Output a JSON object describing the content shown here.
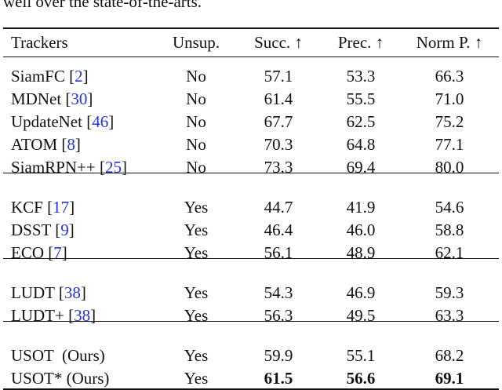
{
  "caption": "well over the state-of-the-arts.",
  "table": {
    "header": [
      "Trackers",
      "Unsup.",
      "Succ. ↑",
      "Prec. ↑",
      "Norm P. ↑"
    ],
    "groups": [
      [
        {
          "tracker": [
            "SiamFC [",
            "2",
            "]"
          ],
          "cells": [
            "No",
            "57.1",
            "53.3",
            "66.3"
          ]
        },
        {
          "tracker": [
            "MDNet [",
            "30",
            "]"
          ],
          "cells": [
            "No",
            "61.4",
            "55.5",
            "71.0"
          ]
        },
        {
          "tracker": [
            "UpdateNet [",
            "46",
            "]"
          ],
          "cells": [
            "No",
            "67.7",
            "62.5",
            "75.2"
          ]
        },
        {
          "tracker": [
            "ATOM [",
            "8",
            "]"
          ],
          "cells": [
            "No",
            "70.3",
            "64.8",
            "77.1"
          ]
        },
        {
          "tracker": [
            "SiamRPN++ [",
            "25",
            "]"
          ],
          "cells": [
            "No",
            "73.3",
            "69.4",
            "80.0"
          ]
        }
      ],
      [
        {
          "tracker": [
            "KCF [",
            "17",
            "]"
          ],
          "cells": [
            "Yes",
            "44.7",
            "41.9",
            "54.6"
          ]
        },
        {
          "tracker": [
            "DSST [",
            "9",
            "]"
          ],
          "cells": [
            "Yes",
            "46.4",
            "46.0",
            "58.8"
          ]
        },
        {
          "tracker": [
            "ECO [",
            "7",
            "]"
          ],
          "cells": [
            "Yes",
            "56.1",
            "48.9",
            "62.1"
          ]
        }
      ],
      [
        {
          "tracker": [
            "LUDT [",
            "38",
            "]"
          ],
          "cells": [
            "Yes",
            "54.3",
            "46.9",
            "59.3"
          ]
        },
        {
          "tracker": [
            "LUDT+ [",
            "38",
            "]"
          ],
          "cells": [
            "Yes",
            "56.3",
            "49.5",
            "63.3"
          ]
        }
      ],
      [
        {
          "tracker": [
            "USOT  (Ours)"
          ],
          "cells": [
            "Yes",
            "59.9",
            "55.1",
            "68.2"
          ]
        },
        {
          "tracker": [
            "USOT* (Ours)"
          ],
          "cells": [
            "Yes",
            "61.5",
            "56.6",
            "69.1"
          ],
          "bold_cells": [
            1,
            2,
            3
          ]
        }
      ]
    ]
  }
}
